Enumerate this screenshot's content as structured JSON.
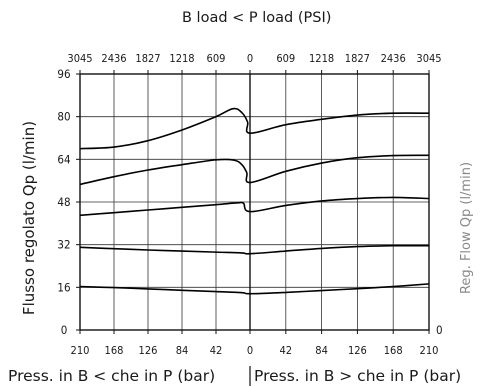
{
  "chart_data": {
    "type": "line",
    "title": "B load < P load (PSI)",
    "psi_ticks": [
      "3045",
      "2436",
      "1827",
      "1218",
      "609",
      "0",
      "609",
      "1218",
      "1827",
      "2436",
      "3045"
    ],
    "bar_ticks": [
      "210",
      "168",
      "126",
      "84",
      "42",
      "0",
      "42",
      "84",
      "126",
      "168",
      "210"
    ],
    "y_ticks": [
      "96",
      "80",
      "64",
      "48",
      "32",
      "16",
      "0"
    ],
    "ylabel_left": "Flusso regolato Qp (l/min)",
    "ylabel_right": "Reg. Flow Qp (l/min)",
    "right_zero_label": "0",
    "xlabel_left": "Press. in B < che in P (bar)",
    "xlabel_right": "Press. in B > che in P (bar)",
    "ylim": [
      0,
      96
    ],
    "grid": true,
    "x_unit_note": "x = signed pressure in bar: negative = B < P (left half), positive = B > P (right half)",
    "series": [
      {
        "points": [
          [
            -210,
            16.3
          ],
          [
            -168,
            15.9
          ],
          [
            -126,
            15.4
          ],
          [
            -84,
            14.9
          ],
          [
            -42,
            14.4
          ],
          [
            -10,
            14.0
          ],
          [
            0,
            13.6
          ],
          [
            42,
            14.1
          ],
          [
            84,
            14.8
          ],
          [
            126,
            15.5
          ],
          [
            168,
            16.3
          ],
          [
            210,
            17.3
          ]
        ]
      },
      {
        "points": [
          [
            -210,
            31.0
          ],
          [
            -168,
            30.5
          ],
          [
            -126,
            30.0
          ],
          [
            -84,
            29.6
          ],
          [
            -42,
            29.2
          ],
          [
            -10,
            28.9
          ],
          [
            0,
            28.6
          ],
          [
            42,
            29.6
          ],
          [
            84,
            30.6
          ],
          [
            126,
            31.3
          ],
          [
            168,
            31.6
          ],
          [
            210,
            31.6
          ]
        ]
      },
      {
        "points": [
          [
            -210,
            43.0
          ],
          [
            -168,
            44.0
          ],
          [
            -126,
            45.0
          ],
          [
            -84,
            46.0
          ],
          [
            -42,
            47.0
          ],
          [
            -15,
            47.7
          ],
          [
            -8,
            47.5
          ],
          [
            0,
            44.4
          ],
          [
            42,
            46.7
          ],
          [
            84,
            48.4
          ],
          [
            126,
            49.3
          ],
          [
            168,
            49.7
          ],
          [
            210,
            49.3
          ]
        ]
      },
      {
        "points": [
          [
            -210,
            54.6
          ],
          [
            -168,
            57.5
          ],
          [
            -126,
            60.0
          ],
          [
            -84,
            62.0
          ],
          [
            -42,
            63.8
          ],
          [
            -20,
            63.7
          ],
          [
            -10,
            62.0
          ],
          [
            -4,
            59.0
          ],
          [
            0,
            55.3
          ],
          [
            42,
            59.5
          ],
          [
            84,
            62.6
          ],
          [
            126,
            64.6
          ],
          [
            168,
            65.4
          ],
          [
            210,
            65.5
          ]
        ]
      },
      {
        "points": [
          [
            -210,
            68.0
          ],
          [
            -168,
            68.6
          ],
          [
            -126,
            71.0
          ],
          [
            -84,
            75.0
          ],
          [
            -42,
            80.0
          ],
          [
            -21,
            83.0
          ],
          [
            -10,
            81.5
          ],
          [
            -3,
            78.0
          ],
          [
            0,
            73.8
          ],
          [
            42,
            77.0
          ],
          [
            84,
            79.0
          ],
          [
            126,
            80.6
          ],
          [
            168,
            81.3
          ],
          [
            210,
            81.3
          ]
        ]
      }
    ]
  }
}
